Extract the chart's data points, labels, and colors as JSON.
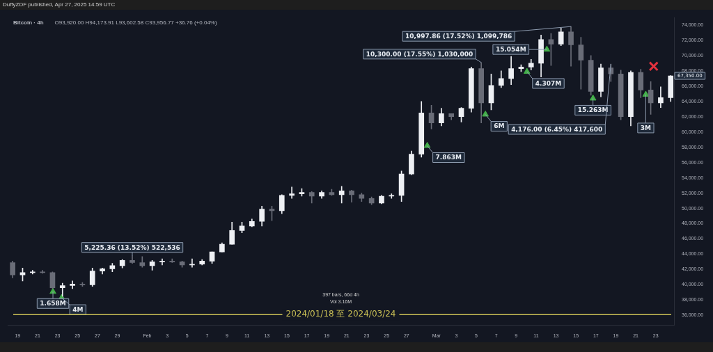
{
  "chart_data": {
    "type": "candlestick",
    "title": "Bitcoin · 4h",
    "subtitle": "O93,920.00 H94,173.91 L93,602.58 C93,956.77 +36.76 (+0.04%)",
    "xlim": [
      "2024-01-18T00:00",
      "2024-03-24T20:00"
    ],
    "ylim": [
      34700,
      75000
    ],
    "xticks": [
      {
        "value": "2024-01-19",
        "label": "19"
      },
      {
        "value": "2024-01-21",
        "label": "21"
      },
      {
        "value": "2024-01-23",
        "label": "23"
      },
      {
        "value": "2024-01-25",
        "label": "25"
      },
      {
        "value": "2024-01-27",
        "label": "27"
      },
      {
        "value": "2024-01-29",
        "label": "29"
      },
      {
        "value": "2024-02-01",
        "label": "Feb"
      },
      {
        "value": "2024-02-03",
        "label": "3"
      },
      {
        "value": "2024-02-05",
        "label": "5"
      },
      {
        "value": "2024-02-07",
        "label": "7"
      },
      {
        "value": "2024-02-09",
        "label": "9"
      },
      {
        "value": "2024-02-11",
        "label": "11"
      },
      {
        "value": "2024-02-13",
        "label": "13"
      },
      {
        "value": "2024-02-15",
        "label": "15"
      },
      {
        "value": "2024-02-17",
        "label": "17"
      },
      {
        "value": "2024-02-19",
        "label": "19"
      },
      {
        "value": "2024-02-21",
        "label": "21"
      },
      {
        "value": "2024-02-23",
        "label": "23"
      },
      {
        "value": "2024-02-25",
        "label": "25"
      },
      {
        "value": "2024-02-27",
        "label": "27"
      },
      {
        "value": "2024-03-01",
        "label": "Mar"
      },
      {
        "value": "2024-03-03",
        "label": "3"
      },
      {
        "value": "2024-03-05",
        "label": "5"
      },
      {
        "value": "2024-03-07",
        "label": "7"
      },
      {
        "value": "2024-03-09",
        "label": "9"
      },
      {
        "value": "2024-03-11",
        "label": "11"
      },
      {
        "value": "2024-03-13",
        "label": "13"
      },
      {
        "value": "2024-03-15",
        "label": "15"
      },
      {
        "value": "2024-03-17",
        "label": "17"
      },
      {
        "value": "2024-03-19",
        "label": "19"
      },
      {
        "value": "2024-03-21",
        "label": "21"
      },
      {
        "value": "2024-03-23",
        "label": "23"
      }
    ],
    "yticks": [
      {
        "value": 36000,
        "label": "36,000.00"
      },
      {
        "value": 38000,
        "label": "38,000.00"
      },
      {
        "value": 40000,
        "label": "40,000.00"
      },
      {
        "value": 42000,
        "label": "42,000.00"
      },
      {
        "value": 44000,
        "label": "44,000.00"
      },
      {
        "value": 46000,
        "label": "46,000.00"
      },
      {
        "value": 48000,
        "label": "48,000.00"
      },
      {
        "value": 50000,
        "label": "50,000.00"
      },
      {
        "value": 52000,
        "label": "52,000.00"
      },
      {
        "value": 54000,
        "label": "54,000.00"
      },
      {
        "value": 56000,
        "label": "56,000.00"
      },
      {
        "value": 58000,
        "label": "58,000.00"
      },
      {
        "value": 60000,
        "label": "60,000.00"
      },
      {
        "value": 62000,
        "label": "62,000.00"
      },
      {
        "value": 64000,
        "label": "64,000.00"
      },
      {
        "value": 66000,
        "label": "66,000.00"
      },
      {
        "value": 68000,
        "label": "68,000.00"
      },
      {
        "value": 70000,
        "label": "70,000.00"
      },
      {
        "value": 72000,
        "label": "72,000.00"
      },
      {
        "value": 74000,
        "label": "74,000.00"
      }
    ],
    "series": [
      {
        "colors": [
          "#6a6d78",
          "#eef0f4",
          "#eef0f4",
          "#6a6d78",
          "#6a6d78",
          "#eef0f4",
          "#eef0f4",
          "#6a6d78",
          "#eef0f4",
          "#eef0f4",
          "#eef0f4",
          "#eef0f4",
          "#6a6d78",
          "#6a6d78",
          "#eef0f4",
          "#eef0f4",
          "#6a6d78",
          "#6a6d78",
          "#eef0f4",
          "#eef0f4",
          "#eef0f4",
          "#eef0f4",
          "#eef0f4",
          "#eef0f4",
          "#eef0f4",
          "#eef0f4",
          "#6a6d78",
          "#eef0f4",
          "#eef0f4",
          "#eef0f4",
          "#6a6d78",
          "#eef0f4",
          "#6a6d78",
          "#eef0f4",
          "#6a6d78",
          "#6a6d78",
          "#6a6d78",
          "#eef0f4",
          "#eef0f4",
          "#eef0f4",
          "#eef0f4",
          "#eef0f4",
          "#6a6d78",
          "#eef0f4",
          "#6a6d78",
          "#eef0f4",
          "#eef0f4",
          "#6a6d78",
          "#eef0f4",
          "#eef0f4",
          "#eef0f4",
          "#eef0f4",
          "#eef0f4",
          "#eef0f4",
          "#6a6d78",
          "#eef0f4",
          "#6a6d78",
          "#6a6d78",
          "#6a6d78",
          "#eef0f4",
          "#6a6d78",
          "#6a6d78",
          "#eef0f4",
          "#6a6d78",
          "#6a6d78",
          "#eef0f4",
          "#eef0f4"
        ],
        "x": [
          "2024-01-18T12:00",
          "2024-01-19T12:00",
          "2024-01-20T12:00",
          "2024-01-21T12:00",
          "2024-01-22T12:00",
          "2024-01-23T12:00",
          "2024-01-24T12:00",
          "2024-01-25T12:00",
          "2024-01-26T12:00",
          "2024-01-27T12:00",
          "2024-01-28T12:00",
          "2024-01-29T12:00",
          "2024-01-30T12:00",
          "2024-01-31T12:00",
          "2024-02-01T12:00",
          "2024-02-02T12:00",
          "2024-02-03T12:00",
          "2024-02-04T12:00",
          "2024-02-05T12:00",
          "2024-02-06T12:00",
          "2024-02-07T12:00",
          "2024-02-08T12:00",
          "2024-02-09T12:00",
          "2024-02-10T12:00",
          "2024-02-11T12:00",
          "2024-02-12T12:00",
          "2024-02-13T12:00",
          "2024-02-14T12:00",
          "2024-02-15T12:00",
          "2024-02-16T12:00",
          "2024-02-17T12:00",
          "2024-02-18T12:00",
          "2024-02-19T12:00",
          "2024-02-20T12:00",
          "2024-02-21T12:00",
          "2024-02-22T12:00",
          "2024-02-23T12:00",
          "2024-02-24T12:00",
          "2024-02-25T12:00",
          "2024-02-26T12:00",
          "2024-02-27T12:00",
          "2024-02-28T12:00",
          "2024-02-29T12:00",
          "2024-03-01T12:00",
          "2024-03-02T12:00",
          "2024-03-03T12:00",
          "2024-03-04T12:00",
          "2024-03-05T12:00",
          "2024-03-06T12:00",
          "2024-03-07T12:00",
          "2024-03-08T12:00",
          "2024-03-09T12:00",
          "2024-03-10T12:00",
          "2024-03-11T12:00",
          "2024-03-12T12:00",
          "2024-03-13T12:00",
          "2024-03-14T12:00",
          "2024-03-15T12:00",
          "2024-03-16T12:00",
          "2024-03-17T12:00",
          "2024-03-18T12:00",
          "2024-03-19T12:00",
          "2024-03-20T12:00",
          "2024-03-21T12:00",
          "2024-03-22T12:00",
          "2024-03-23T12:00",
          "2024-03-24T12:00"
        ],
        "ohlc": [
          [
            42900,
            43100,
            40900,
            41300
          ],
          [
            41300,
            42200,
            40500,
            41600
          ],
          [
            41600,
            41900,
            41400,
            41700
          ],
          [
            41700,
            41900,
            41500,
            41600
          ],
          [
            41600,
            41700,
            39500,
            39600
          ],
          [
            39600,
            40200,
            38500,
            39900
          ],
          [
            39900,
            40500,
            39500,
            40100
          ],
          [
            40100,
            40300,
            39800,
            40000
          ],
          [
            40000,
            42200,
            39800,
            41800
          ],
          [
            41800,
            42200,
            41400,
            42100
          ],
          [
            42100,
            42800,
            41700,
            42500
          ],
          [
            42500,
            43300,
            42200,
            43200
          ],
          [
            43200,
            43800,
            42800,
            42900
          ],
          [
            42900,
            43700,
            42300,
            42500
          ],
          [
            42500,
            43200,
            41900,
            43000
          ],
          [
            43000,
            43400,
            42600,
            43100
          ],
          [
            43100,
            43400,
            42900,
            43000
          ],
          [
            43000,
            43100,
            42300,
            42600
          ],
          [
            42600,
            43400,
            42300,
            42700
          ],
          [
            42700,
            43300,
            42600,
            43100
          ],
          [
            43100,
            44300,
            42800,
            44300
          ],
          [
            44300,
            45500,
            44300,
            45300
          ],
          [
            45300,
            48200,
            45300,
            47100
          ],
          [
            47100,
            48200,
            46800,
            47700
          ],
          [
            47700,
            48600,
            47600,
            48300
          ],
          [
            48300,
            50300,
            47700,
            49900
          ],
          [
            49900,
            50300,
            48400,
            49700
          ],
          [
            49700,
            51800,
            49300,
            51700
          ],
          [
            51700,
            52800,
            51300,
            51900
          ],
          [
            51900,
            52600,
            51600,
            52100
          ],
          [
            52100,
            52200,
            50700,
            51600
          ],
          [
            51600,
            52300,
            51300,
            52100
          ],
          [
            52100,
            52500,
            51700,
            51800
          ],
          [
            51800,
            52900,
            50700,
            52300
          ],
          [
            52300,
            52400,
            50800,
            51800
          ],
          [
            51800,
            52000,
            50900,
            51300
          ],
          [
            51300,
            51500,
            50500,
            50700
          ],
          [
            50700,
            51700,
            50600,
            51600
          ],
          [
            51600,
            51900,
            51300,
            51700
          ],
          [
            51700,
            54900,
            50900,
            54500
          ],
          [
            54500,
            57500,
            54400,
            57100
          ],
          [
            57100,
            64000,
            56700,
            62500
          ],
          [
            62500,
            63500,
            60400,
            61200
          ],
          [
            61200,
            63100,
            60800,
            62400
          ],
          [
            62400,
            62400,
            61600,
            62000
          ],
          [
            62000,
            63200,
            61300,
            63100
          ],
          [
            63100,
            68500,
            62600,
            68300
          ],
          [
            68300,
            69100,
            61200,
            63800
          ],
          [
            63800,
            67600,
            62900,
            66100
          ],
          [
            66100,
            68000,
            65800,
            67000
          ],
          [
            67000,
            69900,
            66200,
            68300
          ],
          [
            68300,
            68800,
            67900,
            68500
          ],
          [
            68500,
            69500,
            68100,
            69000
          ],
          [
            69000,
            72700,
            67200,
            72100
          ],
          [
            72100,
            72900,
            68700,
            71500
          ],
          [
            71500,
            73600,
            71300,
            73100
          ],
          [
            73100,
            73800,
            68600,
            71400
          ],
          [
            71400,
            72400,
            65600,
            69400
          ],
          [
            69400,
            70000,
            64800,
            65300
          ],
          [
            65300,
            68900,
            64600,
            68400
          ],
          [
            68400,
            68900,
            66600,
            67600
          ],
          [
            67600,
            68100,
            61600,
            62000
          ],
          [
            62000,
            68000,
            60800,
            67800
          ],
          [
            67800,
            68200,
            64500,
            65500
          ],
          [
            65500,
            66600,
            62300,
            63800
          ],
          [
            63800,
            65900,
            63200,
            64500
          ],
          [
            64500,
            67400,
            64000,
            67350
          ]
        ]
      },
      {
        "type": "scatter",
        "marker": "triangle",
        "color": "#43b049",
        "x": [
          "2024-01-22T13:00",
          "2024-01-23T10:00",
          "2024-02-29T02:00",
          "2024-03-05T22:00",
          "2024-03-10T02:00",
          "2024-03-12T02:00",
          "2024-03-16T17:00",
          "2024-03-22T00:00"
        ],
        "values": [
          39100,
          38300,
          58200,
          62300,
          67900,
          70800,
          64400,
          64900
        ]
      },
      {
        "type": "scatter",
        "marker": "cross",
        "color": "#e5323e",
        "x": [
          "2024-03-22T19:00"
        ],
        "values": [
          68600
        ]
      }
    ],
    "ref_lines": [
      {
        "axis": "y",
        "value": 36100,
        "label": "2024/01/18 至 2024/03/24",
        "color": "#c9bf55"
      }
    ],
    "annotations": [
      "DuffyZDF published, Apr 27, 2025 14:59 UTC",
      "397 bars, 66d 4h",
      "Vol 3.16M",
      {
        "text": "1.658M",
        "x": "2024-01-22T13:00",
        "y": 39100
      },
      {
        "text": "4M",
        "x": "2024-01-23T10:00",
        "y": 38300
      },
      {
        "text": "7.863M",
        "x": "2024-02-29T02:00",
        "y": 58200
      },
      {
        "text": "6M",
        "x": "2024-03-05T22:00",
        "y": 62300
      },
      {
        "text": "15.054M",
        "x": "2024-03-12T02:00",
        "y": 70800
      },
      {
        "text": "4.307M",
        "x": "2024-03-10T02:00",
        "y": 67900
      },
      {
        "text": "15.263M",
        "x": "2024-03-16T17:00",
        "y": 64400
      },
      {
        "text": "3M",
        "x": "2024-03-22T00:00",
        "y": 64900
      },
      {
        "text": "5,225.36 (13.52%) 522,536",
        "x": "2024-01-30T12:00",
        "y": 43800
      },
      {
        "text": "10,300.00 (17.55%) 1,030,000",
        "x": "2024-03-05T12:00",
        "y": 69100
      },
      {
        "text": "10,997.86 (17.52%) 1,099,786",
        "x": "2024-03-14T12:00",
        "y": 73800
      },
      {
        "text": "4,176.00 (6.45%) 417,600",
        "x": "2024-03-18T12:00",
        "y": 68900
      },
      {
        "text": "67,350.00",
        "x": "2024-03-24T12:00",
        "y": 67350
      }
    ]
  }
}
